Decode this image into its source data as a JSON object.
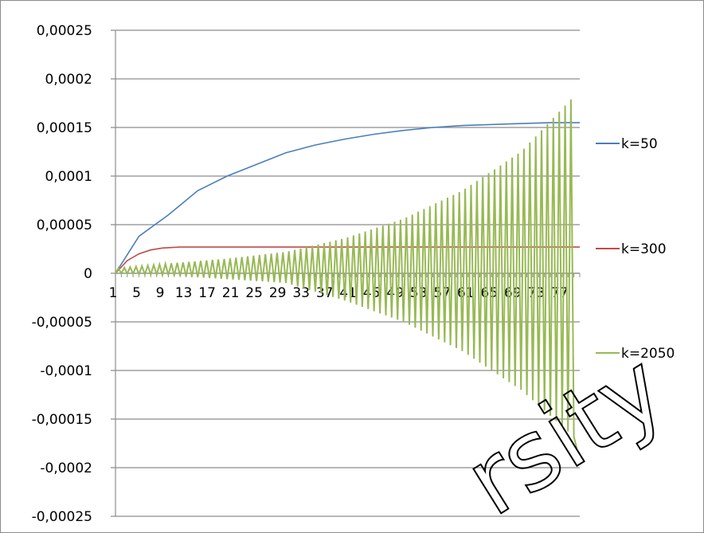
{
  "chart_data": {
    "type": "line",
    "title": "",
    "xlabel": "",
    "ylabel": "",
    "ylim": [
      -0.00025,
      0.00025
    ],
    "y_ticks": [
      "0,00025",
      "0,0002",
      "0,00015",
      "0,0001",
      "0,00005",
      "0",
      "-0,00005",
      "-0,0001",
      "-0,00015",
      "-0,0002",
      "-0,00025"
    ],
    "y_tick_values": [
      0.00025,
      0.0002,
      0.00015,
      0.0001,
      5e-05,
      0,
      -5e-05,
      -0.0001,
      -0.00015,
      -0.0002,
      -0.00025
    ],
    "x_range": [
      1,
      80
    ],
    "x_tick_labels": [
      "1",
      "5",
      "9",
      "13",
      "17",
      "21",
      "25",
      "29",
      "33",
      "37",
      "41",
      "45",
      "49",
      "53",
      "57",
      "61",
      "65",
      "69",
      "73",
      "77"
    ],
    "x_tick_values": [
      1,
      5,
      9,
      13,
      17,
      21,
      25,
      29,
      33,
      37,
      41,
      45,
      49,
      53,
      57,
      61,
      65,
      69,
      73,
      77
    ],
    "grid": true,
    "legend_position": "right",
    "series": [
      {
        "name": "k=50",
        "color": "#4a7ebb",
        "x": [
          1,
          5,
          10,
          15,
          20,
          25,
          30,
          35,
          40,
          45,
          50,
          55,
          60,
          65,
          70,
          75,
          80
        ],
        "values": [
          0,
          3.8e-05,
          6e-05,
          8.5e-05,
          0.0001,
          0.000112,
          0.000124,
          0.000132,
          0.000138,
          0.000143,
          0.000147,
          0.00015,
          0.000152,
          0.000153,
          0.000154,
          0.000155,
          0.000155
        ]
      },
      {
        "name": "k=300",
        "color": "#be4b48",
        "x": [
          1,
          3,
          5,
          7,
          9,
          12,
          20,
          30,
          40,
          50,
          60,
          70,
          80
        ],
        "values": [
          0,
          1.3e-05,
          2e-05,
          2.4e-05,
          2.6e-05,
          2.7e-05,
          2.7e-05,
          2.7e-05,
          2.7e-05,
          2.7e-05,
          2.7e-05,
          2.7e-05,
          2.7e-05
        ]
      },
      {
        "name": "k=2050",
        "color": "#98b954",
        "x": [
          1,
          80
        ],
        "values": [
          0,
          -0.00018
        ],
        "pattern": "alternating oscillation with growing amplitude",
        "peak_envelope": {
          "x": [
            1,
            10,
            20,
            30,
            40,
            50,
            60,
            70,
            79
          ],
          "max": [
            5e-06,
            1e-05,
            1.5e-05,
            2.2e-05,
            3.6e-05,
            5.6e-05,
            8.5e-05,
            0.000125,
            0.000182
          ],
          "min": [
            0,
            -2e-06,
            -6e-06,
            -1e-05,
            -2.8e-05,
            -5e-05,
            -8e-05,
            -0.00012,
            -0.000168
          ]
        },
        "end_value": -0.00018
      }
    ]
  }
}
